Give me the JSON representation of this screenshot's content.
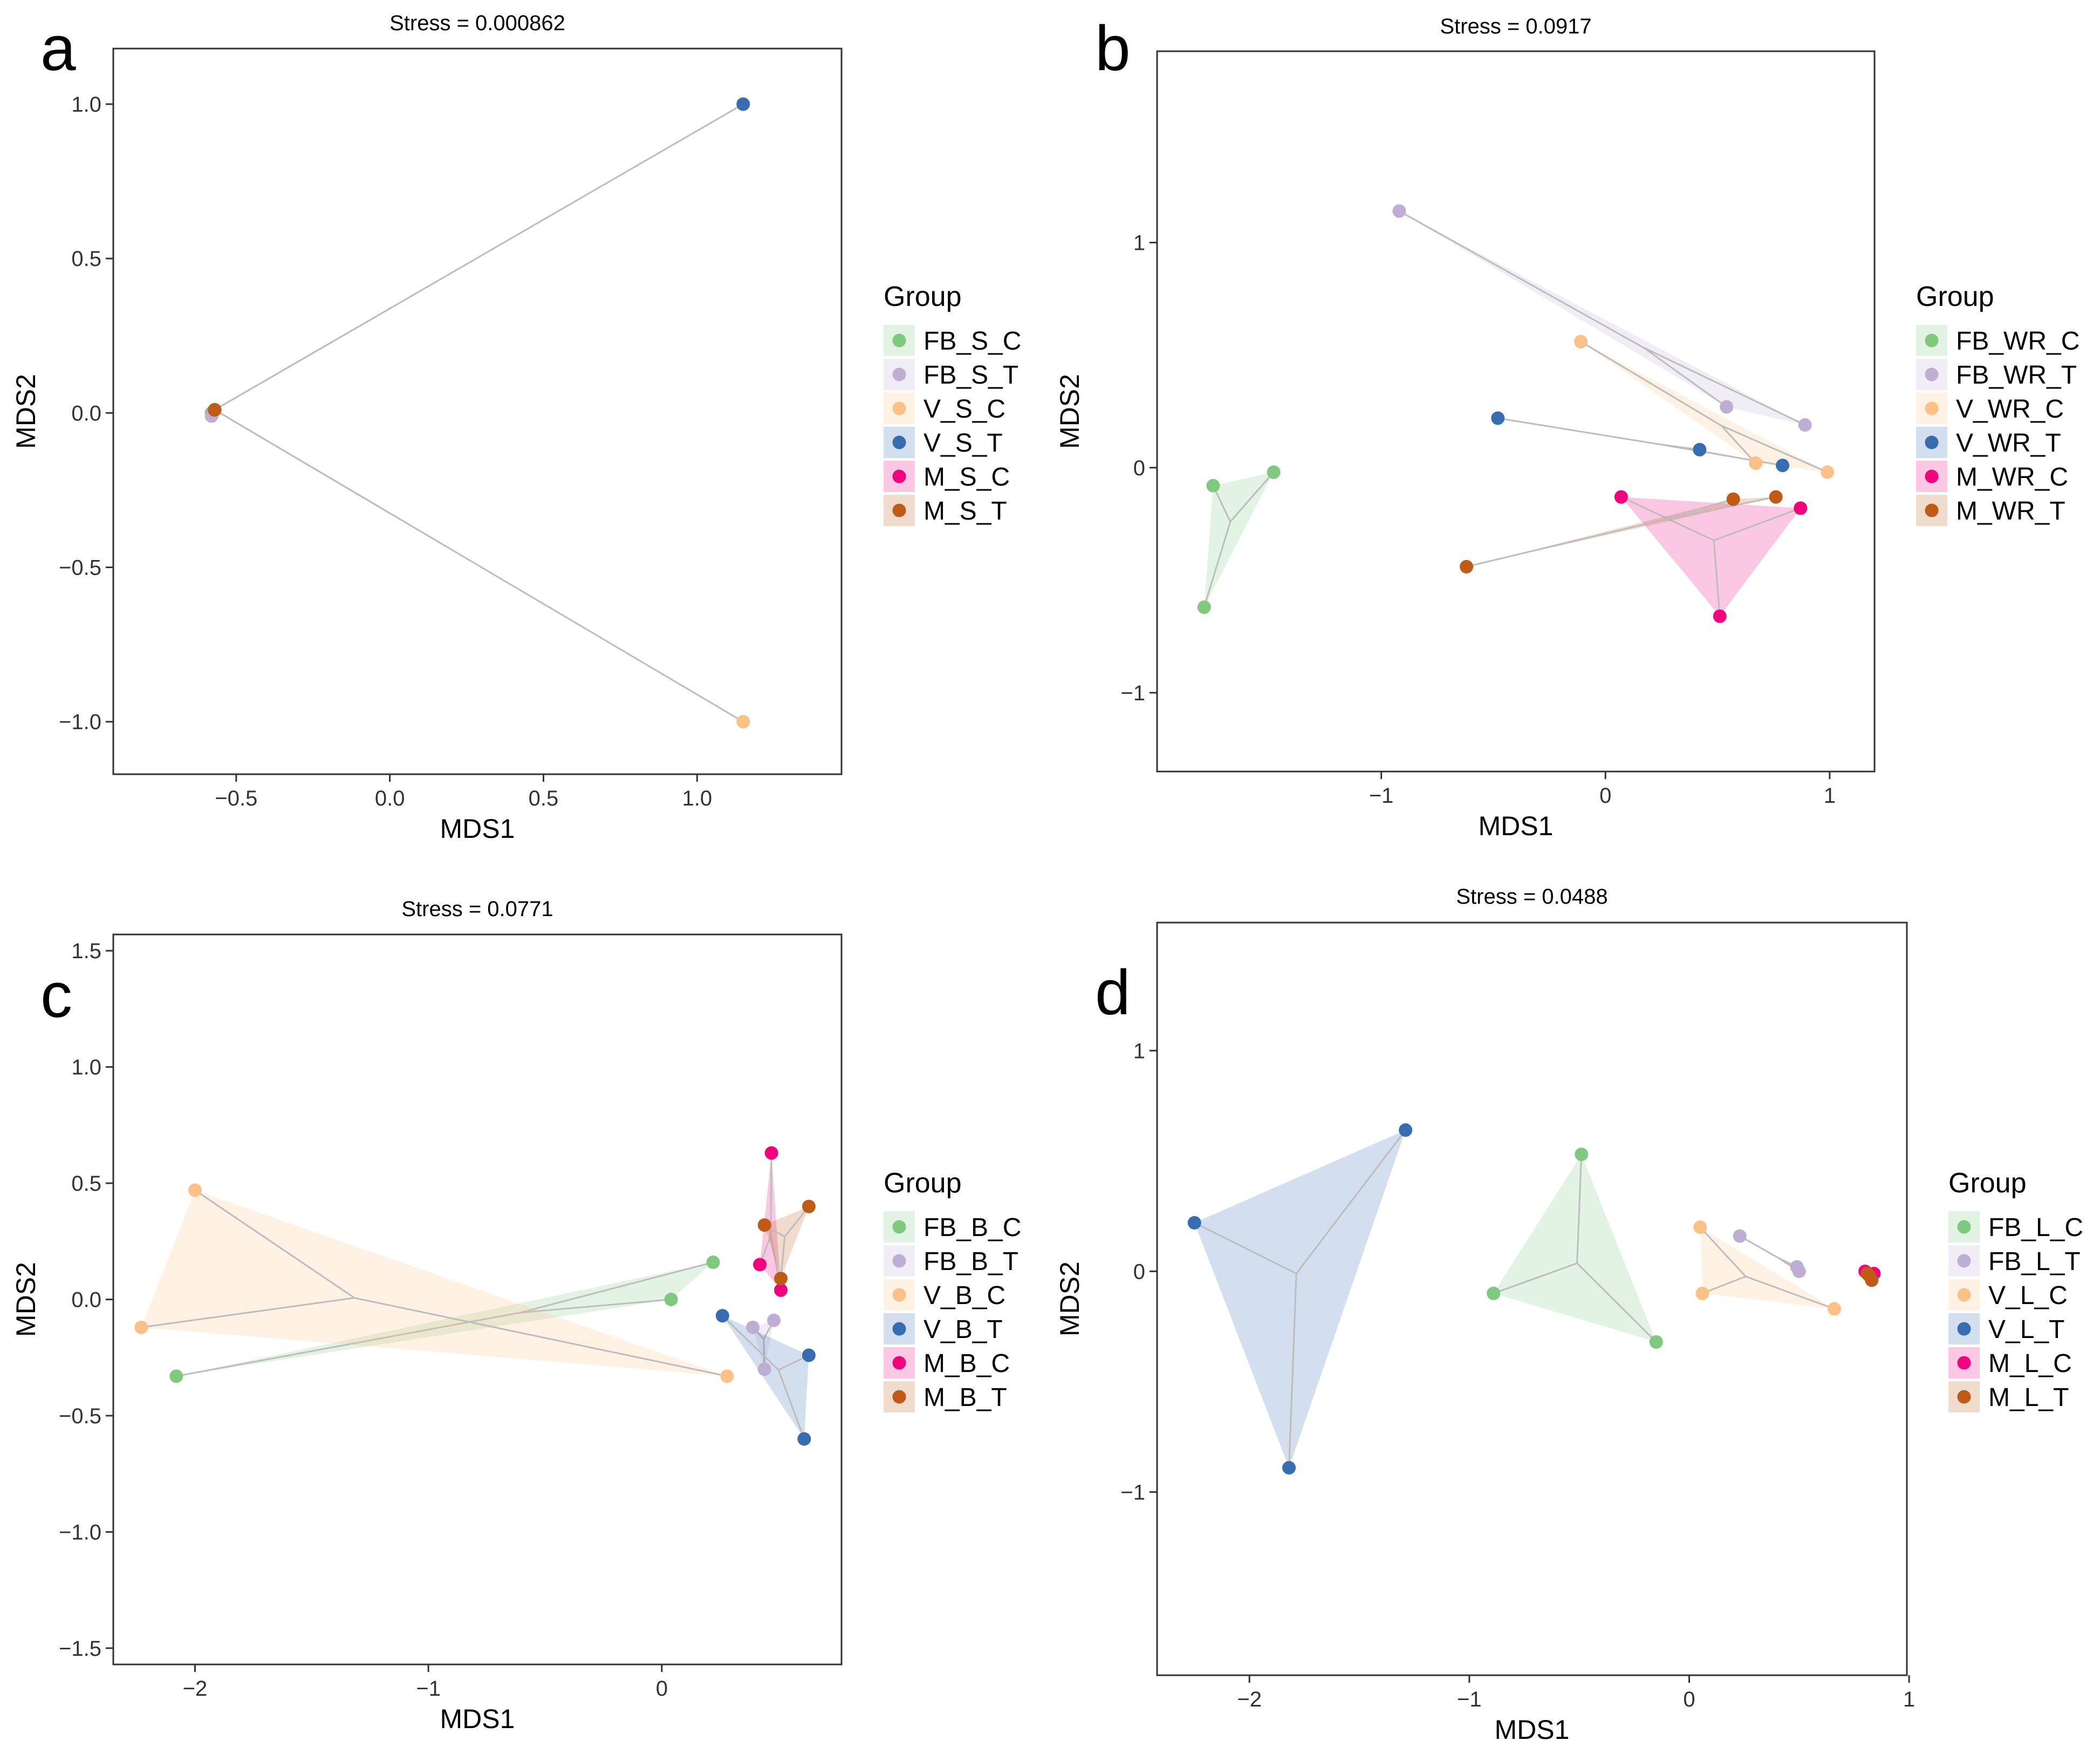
{
  "chart_data": [
    {
      "type": "scatter",
      "panel_label": "a",
      "title": "Stress = 0.000862",
      "xlabel": "MDS1",
      "ylabel": "MDS2",
      "xlim": [
        -0.9,
        1.47
      ],
      "ylim": [
        -1.17,
        1.18
      ],
      "xticks": [
        -0.5,
        0.0,
        0.5,
        1.0
      ],
      "xtick_labels": [
        "−0.5",
        "0.0",
        "0.5",
        "1.0"
      ],
      "yticks": [
        1.0,
        0.5,
        0.0,
        -0.5,
        -1.0
      ],
      "ytick_labels": [
        "1.0",
        "0.5",
        "0.0",
        "−0.5",
        "−1.0"
      ],
      "legend_title": "Group",
      "legend_position": "right",
      "series": [
        {
          "name": "FB_S_C",
          "color": "#7fc97f",
          "points": [
            [
              -0.58,
              0.0
            ],
            [
              -0.58,
              0.0
            ],
            [
              -0.58,
              0.0
            ]
          ]
        },
        {
          "name": "FB_S_T",
          "color": "#beaed4",
          "points": [
            [
              -0.58,
              -0.01
            ],
            [
              -0.58,
              -0.01
            ],
            [
              -0.58,
              -0.01
            ]
          ]
        },
        {
          "name": "V_S_C",
          "color": "#fdc086",
          "points": [
            [
              1.15,
              -1.0
            ],
            [
              -0.57,
              0.01
            ],
            [
              -0.57,
              0.01
            ]
          ]
        },
        {
          "name": "V_S_T",
          "color": "#386cb0",
          "points": [
            [
              1.15,
              1.0
            ],
            [
              -0.57,
              0.01
            ],
            [
              -0.57,
              0.01
            ]
          ]
        },
        {
          "name": "M_S_C",
          "color": "#f0027f",
          "points": [
            [
              -0.57,
              0.01
            ],
            [
              -0.57,
              0.01
            ],
            [
              -0.57,
              0.01
            ]
          ]
        },
        {
          "name": "M_S_T",
          "color": "#bf5b17",
          "points": [
            [
              -0.57,
              0.01
            ],
            [
              -0.57,
              0.01
            ],
            [
              -0.57,
              0.01
            ]
          ]
        }
      ]
    },
    {
      "type": "scatter",
      "panel_label": "b",
      "title": "Stress = 0.0917",
      "xlabel": "MDS1",
      "ylabel": "MDS2",
      "xlim": [
        -2.0,
        1.2
      ],
      "ylim": [
        -1.35,
        1.85
      ],
      "xticks": [
        -1,
        0,
        1
      ],
      "xtick_labels": [
        "−1",
        "0",
        "1"
      ],
      "yticks": [
        1,
        0,
        -1
      ],
      "ytick_labels": [
        "1",
        "0",
        "−1"
      ],
      "legend_title": "Group",
      "legend_position": "right",
      "series": [
        {
          "name": "FB_WR_C",
          "color": "#7fc97f",
          "points": [
            [
              -1.75,
              -0.08
            ],
            [
              -1.48,
              -0.02
            ],
            [
              -1.79,
              -0.62
            ]
          ]
        },
        {
          "name": "FB_WR_T",
          "color": "#beaed4",
          "points": [
            [
              -0.92,
              1.14
            ],
            [
              0.54,
              0.27
            ],
            [
              0.89,
              0.19
            ]
          ]
        },
        {
          "name": "V_WR_C",
          "color": "#fdc086",
          "points": [
            [
              -0.11,
              0.56
            ],
            [
              0.67,
              0.02
            ],
            [
              0.99,
              -0.02
            ]
          ]
        },
        {
          "name": "V_WR_T",
          "color": "#386cb0",
          "points": [
            [
              -0.48,
              0.22
            ],
            [
              0.42,
              0.08
            ],
            [
              0.79,
              0.01
            ]
          ]
        },
        {
          "name": "M_WR_C",
          "color": "#f0027f",
          "points": [
            [
              0.07,
              -0.13
            ],
            [
              0.87,
              -0.18
            ],
            [
              0.51,
              -0.66
            ]
          ]
        },
        {
          "name": "M_WR_T",
          "color": "#bf5b17",
          "points": [
            [
              -0.62,
              -0.44
            ],
            [
              0.57,
              -0.14
            ],
            [
              0.76,
              -0.13
            ]
          ]
        }
      ]
    },
    {
      "type": "scatter",
      "panel_label": "c",
      "title": "Stress = 0.0771",
      "xlabel": "MDS1",
      "ylabel": "MDS2",
      "xlim": [
        -2.35,
        0.77
      ],
      "ylim": [
        -1.57,
        1.57
      ],
      "xticks": [
        -2,
        -1,
        0
      ],
      "xtick_labels": [
        "−2",
        "−1",
        "0"
      ],
      "yticks": [
        1.5,
        1.0,
        0.5,
        0.0,
        -0.5,
        -1.0,
        -1.5
      ],
      "ytick_labels": [
        "1.5",
        "1.0",
        "0.5",
        "0.0",
        "−0.5",
        "−1.0",
        "−1.5"
      ],
      "legend_title": "Group",
      "legend_position": "right",
      "series": [
        {
          "name": "FB_B_C",
          "color": "#7fc97f",
          "points": [
            [
              0.22,
              0.16
            ],
            [
              0.04,
              0.0
            ],
            [
              -2.08,
              -0.33
            ]
          ]
        },
        {
          "name": "FB_B_T",
          "color": "#beaed4",
          "points": [
            [
              0.39,
              -0.12
            ],
            [
              0.48,
              -0.09
            ],
            [
              0.44,
              -0.3
            ]
          ]
        },
        {
          "name": "V_B_C",
          "color": "#fdc086",
          "points": [
            [
              -2.0,
              0.47
            ],
            [
              -2.23,
              -0.12
            ],
            [
              0.28,
              -0.33
            ]
          ]
        },
        {
          "name": "V_B_T",
          "color": "#386cb0",
          "points": [
            [
              0.26,
              -0.07
            ],
            [
              0.63,
              -0.24
            ],
            [
              0.61,
              -0.6
            ]
          ]
        },
        {
          "name": "M_B_C",
          "color": "#f0027f",
          "points": [
            [
              0.47,
              0.63
            ],
            [
              0.42,
              0.15
            ],
            [
              0.51,
              0.04
            ]
          ]
        },
        {
          "name": "M_B_T",
          "color": "#bf5b17",
          "points": [
            [
              0.63,
              0.4
            ],
            [
              0.44,
              0.32
            ],
            [
              0.51,
              0.09
            ]
          ]
        }
      ]
    },
    {
      "type": "scatter",
      "panel_label": "d",
      "title": "Stress = 0.0488",
      "xlabel": "MDS1",
      "ylabel": "MDS2",
      "xlim": [
        -2.42,
        0.99
      ],
      "ylim": [
        -1.83,
        1.58
      ],
      "xticks": [
        -2,
        -1,
        0,
        1
      ],
      "xtick_labels": [
        "−2",
        "−1",
        "0",
        "1"
      ],
      "yticks": [
        1,
        0,
        -1
      ],
      "ytick_labels": [
        "1",
        "0",
        "−1"
      ],
      "legend_title": "Group",
      "legend_position": "right",
      "series": [
        {
          "name": "FB_L_C",
          "color": "#7fc97f",
          "points": [
            [
              -0.49,
              0.53
            ],
            [
              -0.89,
              -0.1
            ],
            [
              -0.15,
              -0.32
            ]
          ]
        },
        {
          "name": "FB_L_T",
          "color": "#beaed4",
          "points": [
            [
              0.23,
              0.16
            ],
            [
              0.49,
              0.02
            ],
            [
              0.5,
              0.0
            ]
          ]
        },
        {
          "name": "V_L_C",
          "color": "#fdc086",
          "points": [
            [
              0.05,
              0.2
            ],
            [
              0.06,
              -0.1
            ],
            [
              0.66,
              -0.17
            ]
          ]
        },
        {
          "name": "V_L_T",
          "color": "#386cb0",
          "points": [
            [
              -1.29,
              0.64
            ],
            [
              -2.25,
              0.22
            ],
            [
              -1.82,
              -0.89
            ]
          ]
        },
        {
          "name": "M_L_C",
          "color": "#f0027f",
          "points": [
            [
              0.8,
              0.0
            ],
            [
              0.81,
              -0.01
            ],
            [
              0.84,
              -0.01
            ]
          ]
        },
        {
          "name": "M_L_T",
          "color": "#bf5b17",
          "points": [
            [
              0.81,
              -0.01
            ],
            [
              0.83,
              -0.04
            ],
            [
              0.82,
              -0.02
            ]
          ]
        }
      ]
    }
  ]
}
